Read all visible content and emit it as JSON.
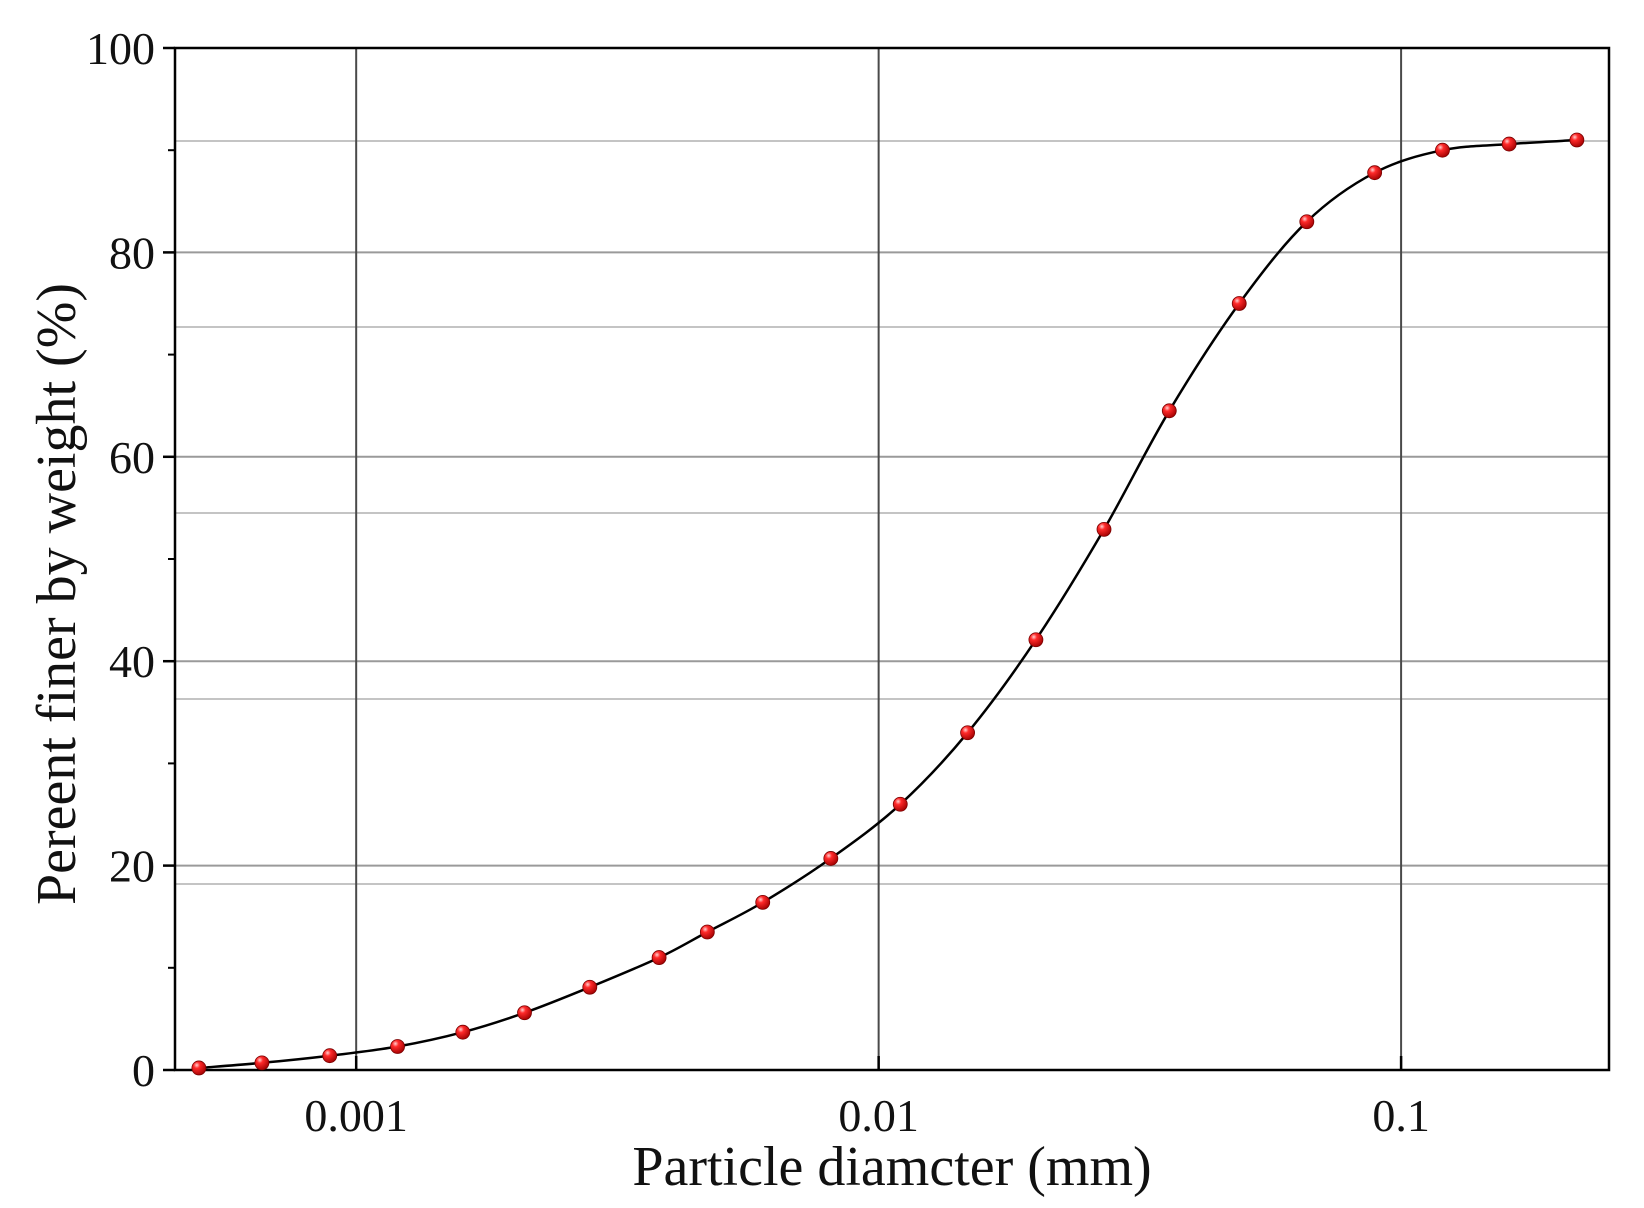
{
  "chart_data": {
    "type": "scatter",
    "title": "",
    "xlabel": "Particle diamcter (mm)",
    "ylabel": "Pereent finer by weight (%)",
    "x_scale": "log",
    "xlim": [
      0.00045,
      0.25
    ],
    "ylim": [
      0,
      100
    ],
    "x_ticks": [
      {
        "value": 0.001,
        "label": "0.001"
      },
      {
        "value": 0.01,
        "label": "0.01"
      },
      {
        "value": 0.1,
        "label": "0.1"
      }
    ],
    "y_ticks": [
      {
        "value": 0,
        "label": "0"
      },
      {
        "value": 20,
        "label": "20"
      },
      {
        "value": 40,
        "label": "40"
      },
      {
        "value": 60,
        "label": "60"
      },
      {
        "value": 80,
        "label": "80"
      },
      {
        "value": 100,
        "label": "100"
      }
    ],
    "y_minor_ticks": [
      10,
      30,
      50,
      70,
      90
    ],
    "grid": true,
    "vertical_gridlines": [
      0.001,
      0.01,
      0.1
    ],
    "horizontal_gridlines": [
      20,
      40,
      60,
      80
    ],
    "extra_gray_gridlines": [
      18.2,
      36.3,
      54.5,
      72.7,
      90.9
    ],
    "marker_color": "#ee1111",
    "line_color": "#000000",
    "series": [
      {
        "style": "markers",
        "x": [
          0.0005,
          0.00066,
          0.00089,
          0.0012,
          0.0016,
          0.0021,
          0.0028,
          0.0038,
          0.0047,
          0.006,
          0.0081,
          0.011,
          0.0148,
          0.02,
          0.027,
          0.036,
          0.049,
          0.066,
          0.089,
          0.12,
          0.161,
          0.217
        ],
        "y": [
          0.2,
          0.7,
          1.4,
          2.3,
          3.7,
          5.6,
          8.1,
          11.0,
          13.5,
          16.4,
          20.7,
          26.0,
          33.0,
          42.1,
          52.9,
          64.5,
          75.0,
          83.0,
          87.8,
          90.0,
          90.6,
          91.0
        ]
      },
      {
        "style": "line",
        "x": [
          0.0005,
          0.00066,
          0.00089,
          0.0012,
          0.0016,
          0.0021,
          0.0028,
          0.0038,
          0.0047,
          0.006,
          0.0081,
          0.011,
          0.0148,
          0.02,
          0.027,
          0.036,
          0.049,
          0.066,
          0.089,
          0.12,
          0.161,
          0.217
        ],
        "y": [
          0.2,
          0.7,
          1.4,
          2.3,
          3.7,
          5.6,
          8.1,
          11.0,
          13.5,
          16.4,
          20.7,
          26.0,
          33.0,
          42.1,
          52.9,
          64.5,
          75.0,
          83.0,
          87.8,
          90.0,
          90.6,
          91.0
        ]
      }
    ]
  }
}
